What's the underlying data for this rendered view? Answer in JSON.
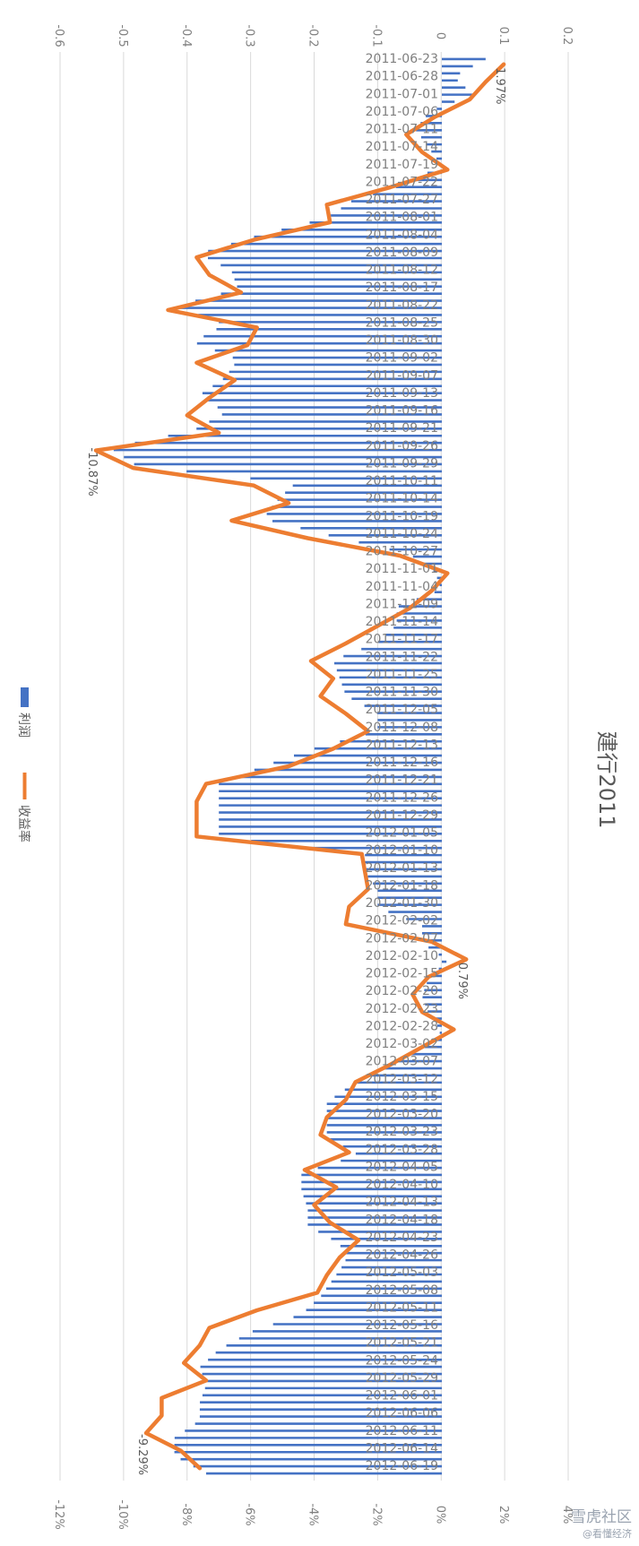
{
  "chart_data": {
    "type": "bar",
    "orientation": "rotated 90° clockwise; categories run top-to-bottom, values grow to the left",
    "title": "建行2011",
    "legend": [
      "利润",
      "收益率"
    ],
    "legend_placement": "left",
    "grid": true,
    "primary_axis": {
      "ticks": [
        "-0.6",
        "-0.5",
        "-0.4",
        "-0.3",
        "-0.2",
        "-0.1",
        "0",
        "0.1",
        "0.2"
      ],
      "range": [
        -0.6,
        0.2
      ]
    },
    "secondary_axis": {
      "ticks": [
        "-12%",
        "-10%",
        "-8%",
        "-6%",
        "-4%",
        "-2%",
        "0%",
        "2%",
        "4%"
      ],
      "range": [
        -12,
        4
      ]
    },
    "category_labels": [
      "2011-06-23",
      "2011-06-28",
      "2011-07-01",
      "2011-07-06",
      "2011-07-11",
      "2011-07-14",
      "2011-07-19",
      "2011-07-22",
      "2011-07-27",
      "2011-08-01",
      "2011-08-04",
      "2011-08-09",
      "2011-08-12",
      "2011-08-17",
      "2011-08-22",
      "2011-08-25",
      "2011-08-30",
      "2011-09-02",
      "2011-09-07",
      "2011-09-13",
      "2011-09-16",
      "2011-09-21",
      "2011-09-26",
      "2011-09-29",
      "2011-10-11",
      "2011-10-14",
      "2011-10-19",
      "2011-10-24",
      "2011-10-27",
      "2011-11-01",
      "2011-11-04",
      "2011-11-09",
      "2011-11-14",
      "2011-11-17",
      "2011-11-22",
      "2011-11-25",
      "2011-11-30",
      "2011-12-05",
      "2011-12-08",
      "2011-12-13",
      "2011-12-16",
      "2011-12-21",
      "2011-12-26",
      "2011-12-29",
      "2012-01-05",
      "2012-01-10",
      "2012-01-13",
      "2012-01-18",
      "2012-01-30",
      "2012-02-02",
      "2012-02-07",
      "2012-02-10",
      "2012-02-15",
      "2012-02-20",
      "2012-02-23",
      "2012-02-28",
      "2012-03-02",
      "2012-03-07",
      "2012-03-12",
      "2012-03-15",
      "2012-03-20",
      "2012-03-23",
      "2012-03-28",
      "2012-04-05",
      "2012-04-10",
      "2012-04-13",
      "2012-04-18",
      "2012-04-23",
      "2012-04-26",
      "2012-05-03",
      "2012-05-08",
      "2012-05-11",
      "2012-05-16",
      "2012-05-21",
      "2012-05-24",
      "2012-05-29",
      "2012-06-01",
      "2012-06-06",
      "2012-06-11",
      "2012-06-14",
      "2012-06-19"
    ],
    "series": [
      {
        "name": "利润",
        "axis": "primary",
        "color": "#4472c4",
        "values": [
          0.07,
          0.02,
          0.05,
          -0.02,
          -0.04,
          -0.02,
          0,
          -0.05,
          -0.14,
          -0.18,
          -0.29,
          -0.38,
          -0.33,
          -0.32,
          -0.42,
          -0.34,
          -0.39,
          -0.32,
          -0.34,
          -0.38,
          -0.34,
          -0.39,
          -0.52,
          -0.48,
          -0.23,
          -0.26,
          -0.28,
          -0.17,
          -0.05,
          -0.01,
          0,
          -0.07,
          -0.07,
          -0.1,
          -0.17,
          -0.16,
          -0.15,
          -0.1,
          -0.1,
          -0.2,
          -0.28,
          -0.35,
          -0.35,
          -0.35,
          -0.35,
          -0.12,
          -0.12,
          -0.1,
          -0.1,
          -0.03,
          -0.03,
          0.01,
          -0.02,
          -0.03,
          -0.02,
          0,
          -0.03,
          -0.09,
          -0.14,
          -0.18,
          -0.18,
          -0.18,
          -0.13,
          -0.22,
          -0.22,
          -0.21,
          -0.21,
          -0.16,
          -0.15,
          -0.17,
          -0.19,
          -0.22,
          -0.3,
          -0.35,
          -0.38,
          -0.37,
          -0.38,
          -0.38,
          -0.42,
          -0.42,
          -0.37
        ]
      },
      {
        "name": "收益率",
        "axis": "secondary",
        "color": "#ed7d31",
        "unit": "%",
        "values": [
          1.97,
          1.4,
          0.9,
          -0.2,
          -1.1,
          -0.6,
          0.2,
          -1.6,
          -3.6,
          -3.5,
          -5.9,
          -7.7,
          -7.3,
          -6.3,
          -8.6,
          -5.8,
          -6.1,
          -7.7,
          -6.5,
          -7.3,
          -8.0,
          -7.0,
          -10.87,
          -9.7,
          -5.9,
          -4.8,
          -6.6,
          -4.2,
          -1.3,
          0.2,
          -0.3,
          -1.0,
          -2.0,
          -3.0,
          -4.1,
          -3.4,
          -3.8,
          -3.0,
          -2.3,
          -3.4,
          -4.8,
          -7.4,
          -7.7,
          -7.7,
          -7.7,
          -2.5,
          -2.4,
          -2.3,
          -2.9,
          -3.0,
          -0.3,
          0.79,
          -0.4,
          -0.9,
          -0.6,
          0.4,
          -0.6,
          -1.6,
          -2.7,
          -3.0,
          -3.6,
          -3.8,
          -2.9,
          -4.3,
          -3.3,
          -4.0,
          -3.5,
          -2.6,
          -3.2,
          -3.6,
          -3.9,
          -5.8,
          -7.3,
          -7.6,
          -8.1,
          -7.4,
          -8.8,
          -8.8,
          -9.29,
          -8.2,
          -7.6
        ]
      }
    ],
    "data_labels": [
      "1.97%",
      "-10.87%",
      "0.79%",
      "-9.29%"
    ]
  },
  "watermark": {
    "logo": "雪虎社区",
    "sub": "@看懂经济"
  }
}
